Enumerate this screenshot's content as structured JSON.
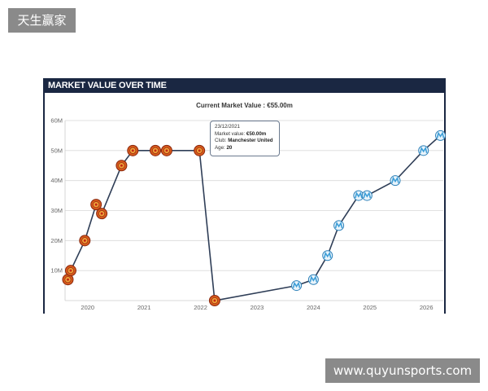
{
  "watermarks": {
    "top_left": "天生赢家",
    "bottom_right": "www.quyunsports.com"
  },
  "panel": {
    "header": "MARKET VALUE OVER TIME"
  },
  "colors": {
    "header_bg": "#1a2742",
    "line": "#2f3e57",
    "grid": "#d9d9d9",
    "man_utd_badge": "#d6591b",
    "marseille_badge": "#3f9fd8"
  },
  "tooltip": {
    "date": "23/12/2021",
    "market_value_label": "Market value:",
    "market_value": "€50.00m",
    "club_label": "Club:",
    "club": "Manchester United",
    "age_label": "Age:",
    "age": "20"
  },
  "chart_data": {
    "type": "line",
    "title": "Current Market Value : €55.00m",
    "xlabel": "",
    "ylabel": "",
    "y_ticks": [
      "10M",
      "20M",
      "30M",
      "40M",
      "50M",
      "60M"
    ],
    "y_tick_values": [
      10,
      20,
      30,
      40,
      50,
      60
    ],
    "x_ticks": [
      "2020",
      "2021",
      "2022",
      "2023",
      "2024",
      "2025",
      "2026"
    ],
    "x_tick_values": [
      2020,
      2021,
      2022,
      2023,
      2024,
      2025,
      2026
    ],
    "xlim": [
      2019.6,
      2026.3
    ],
    "ylim": [
      0,
      60
    ],
    "grid": true,
    "legend": "none",
    "points": [
      {
        "x": 2019.65,
        "y": 7,
        "club": "man_utd"
      },
      {
        "x": 2019.7,
        "y": 10,
        "club": "man_utd"
      },
      {
        "x": 2019.95,
        "y": 20,
        "club": "man_utd"
      },
      {
        "x": 2020.15,
        "y": 32,
        "club": "man_utd"
      },
      {
        "x": 2020.25,
        "y": 29,
        "club": "man_utd"
      },
      {
        "x": 2020.6,
        "y": 45,
        "club": "man_utd"
      },
      {
        "x": 2020.8,
        "y": 50,
        "club": "man_utd"
      },
      {
        "x": 2021.2,
        "y": 50,
        "club": "man_utd"
      },
      {
        "x": 2021.4,
        "y": 50,
        "club": "man_utd"
      },
      {
        "x": 2021.98,
        "y": 50,
        "club": "man_utd"
      },
      {
        "x": 2022.25,
        "y": 0,
        "club": "man_utd"
      },
      {
        "x": 2023.7,
        "y": 5,
        "club": "marseille"
      },
      {
        "x": 2024.0,
        "y": 7,
        "club": "marseille"
      },
      {
        "x": 2024.25,
        "y": 15,
        "club": "marseille"
      },
      {
        "x": 2024.45,
        "y": 25,
        "club": "marseille"
      },
      {
        "x": 2024.8,
        "y": 35,
        "club": "marseille"
      },
      {
        "x": 2024.95,
        "y": 35,
        "club": "marseille"
      },
      {
        "x": 2025.45,
        "y": 40,
        "club": "marseille"
      },
      {
        "x": 2025.95,
        "y": 50,
        "club": "marseille"
      },
      {
        "x": 2026.25,
        "y": 55,
        "club": "marseille"
      }
    ]
  }
}
